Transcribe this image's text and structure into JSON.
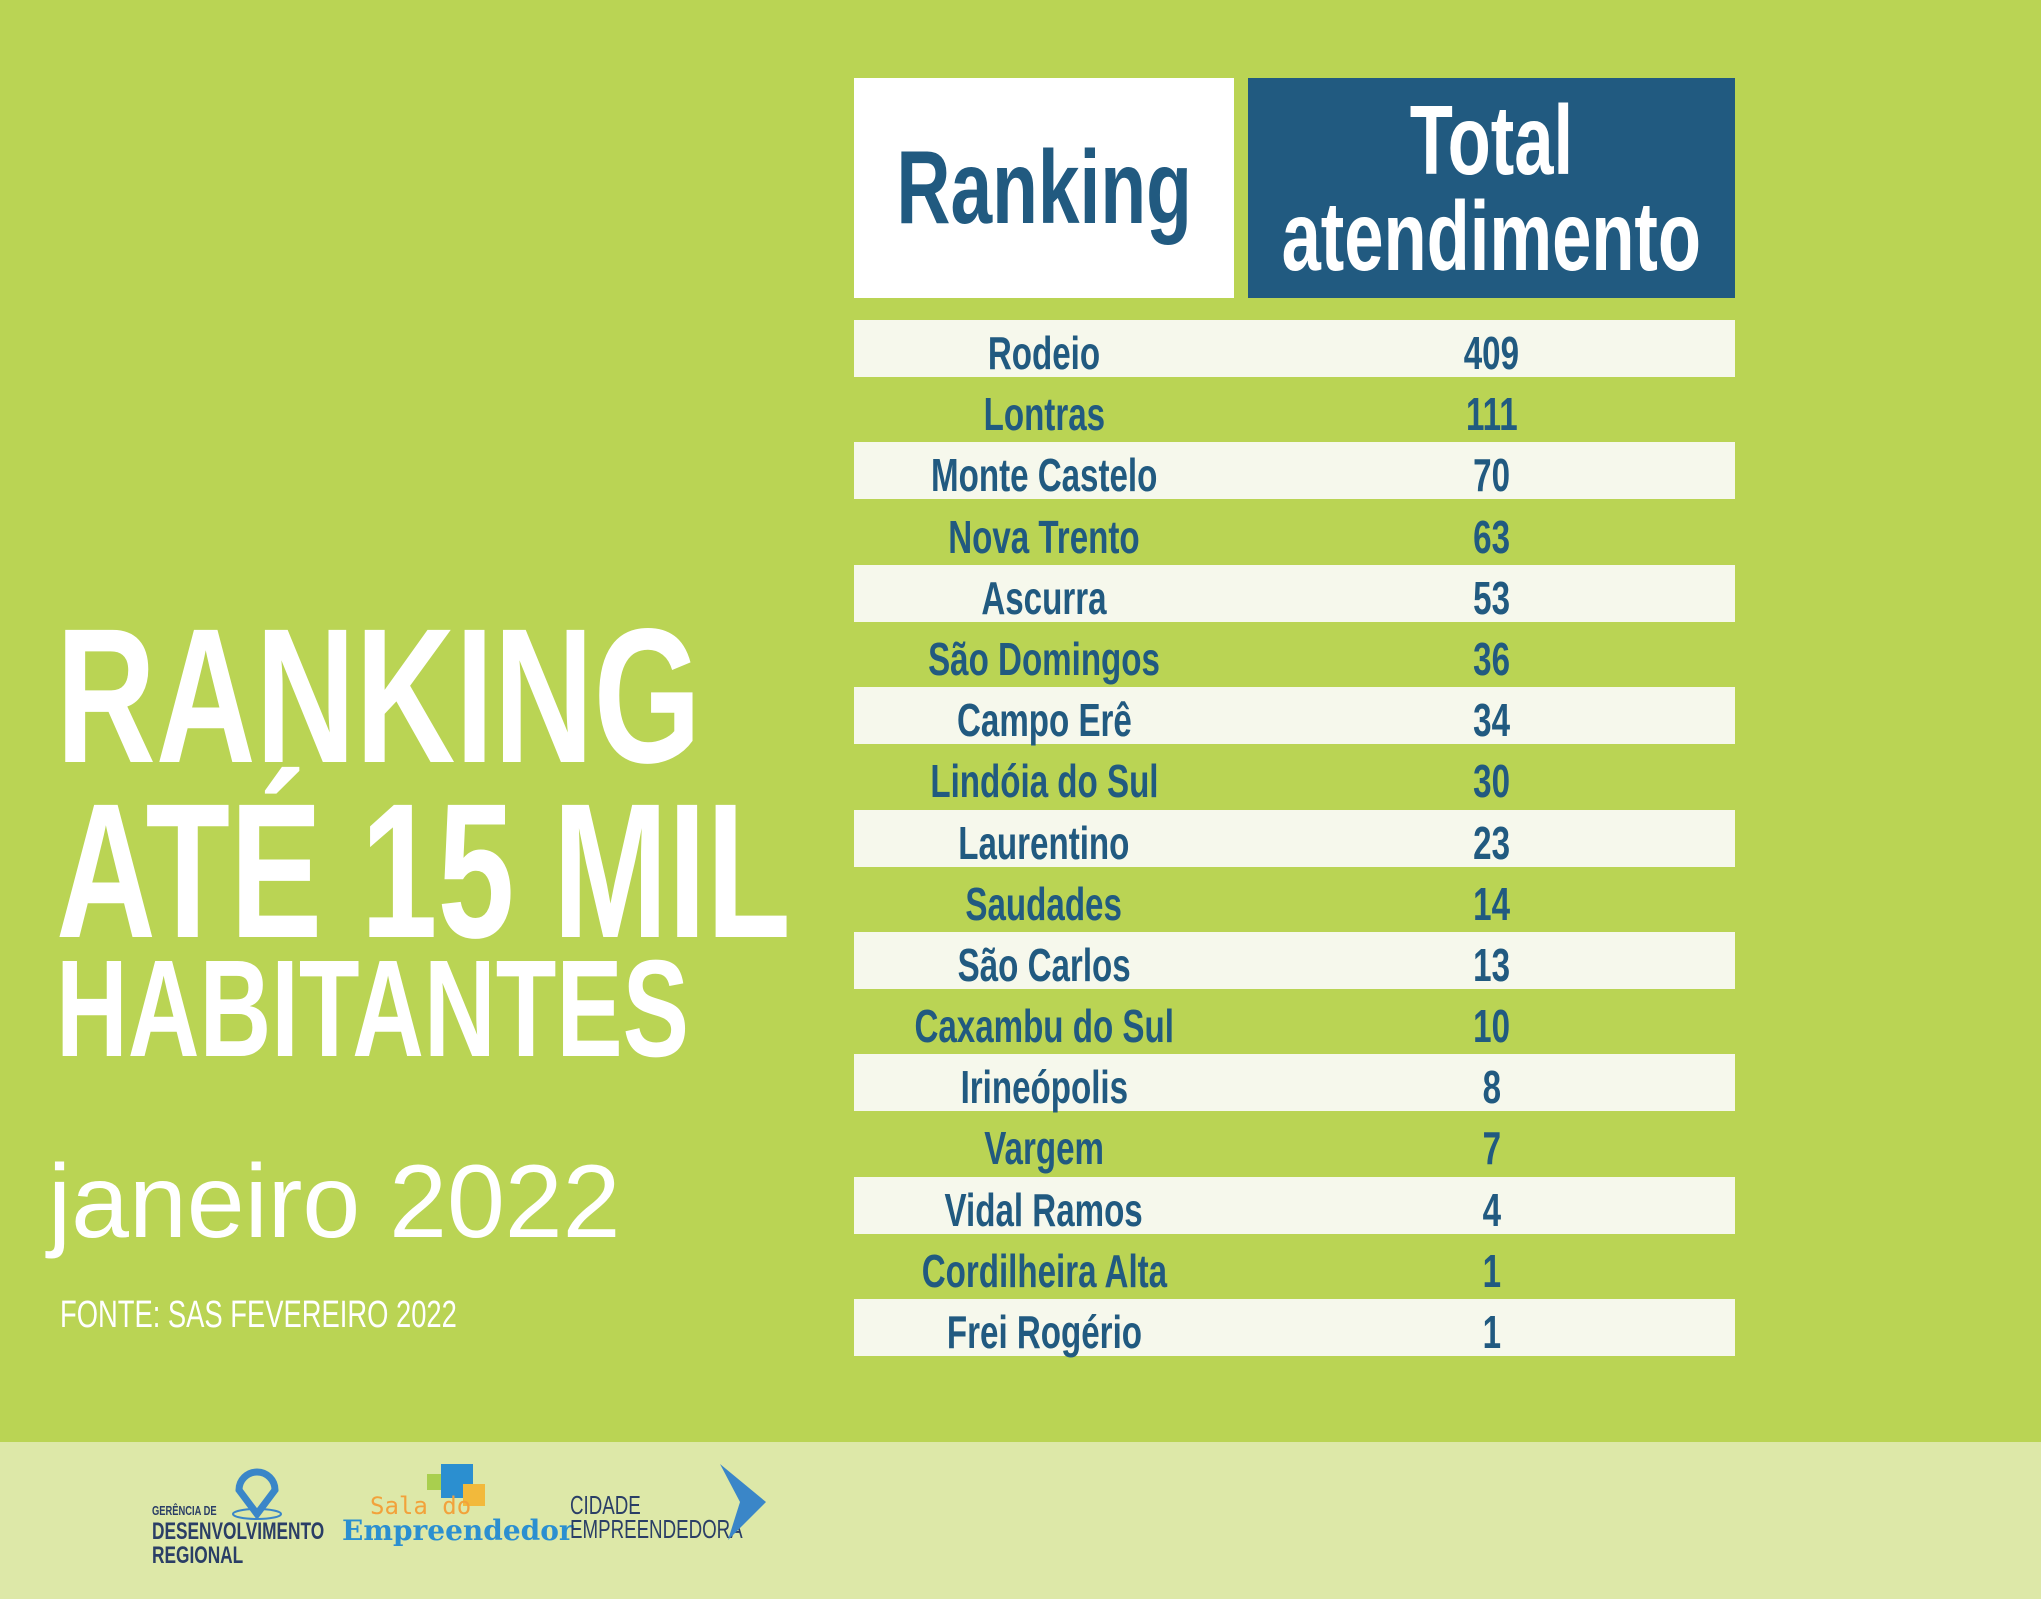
{
  "headline": {
    "line1": "RANKING",
    "line2": "ATÉ 15 MIL",
    "line3": "HABITANTES"
  },
  "period": "janeiro 2022",
  "source": "FONTE: SAS FEVEREIRO 2022",
  "table": {
    "header_ranking": "Ranking",
    "header_total_line1": "Total",
    "header_total_line2": "atendimento",
    "rows": [
      {
        "name": "Rodeio",
        "value": "409"
      },
      {
        "name": "Lontras",
        "value": "111"
      },
      {
        "name": "Monte Castelo",
        "value": "70"
      },
      {
        "name": "Nova Trento",
        "value": "63"
      },
      {
        "name": "Ascurra",
        "value": "53"
      },
      {
        "name": "São Domingos",
        "value": "36"
      },
      {
        "name": "Campo Erê",
        "value": "34"
      },
      {
        "name": "Lindóia do Sul",
        "value": "30"
      },
      {
        "name": "Laurentino",
        "value": "23"
      },
      {
        "name": "Saudades",
        "value": "14"
      },
      {
        "name": "São Carlos",
        "value": "13"
      },
      {
        "name": "Caxambu do Sul",
        "value": "10"
      },
      {
        "name": "Irineópolis",
        "value": "8"
      },
      {
        "name": "Vargem",
        "value": "7"
      },
      {
        "name": "Vidal Ramos",
        "value": "4"
      },
      {
        "name": "Cordilheira Alta",
        "value": "1"
      },
      {
        "name": "Frei Rogério",
        "value": "1"
      }
    ]
  },
  "footer": {
    "logo1": {
      "small": "GERÊNCIA DE",
      "line1": "DESENVOLVIMENTO",
      "line2": "REGIONAL"
    },
    "logo2": {
      "top": "Sala do",
      "bottom": "Empreendedor"
    },
    "logo3": {
      "line1": "CIDADE",
      "line2": "EMPREENDEDORA"
    }
  },
  "colors": {
    "background": "#BAD454",
    "footer": "#DDE8A8",
    "accent": "#215A80",
    "row": "#F6F8EC"
  }
}
